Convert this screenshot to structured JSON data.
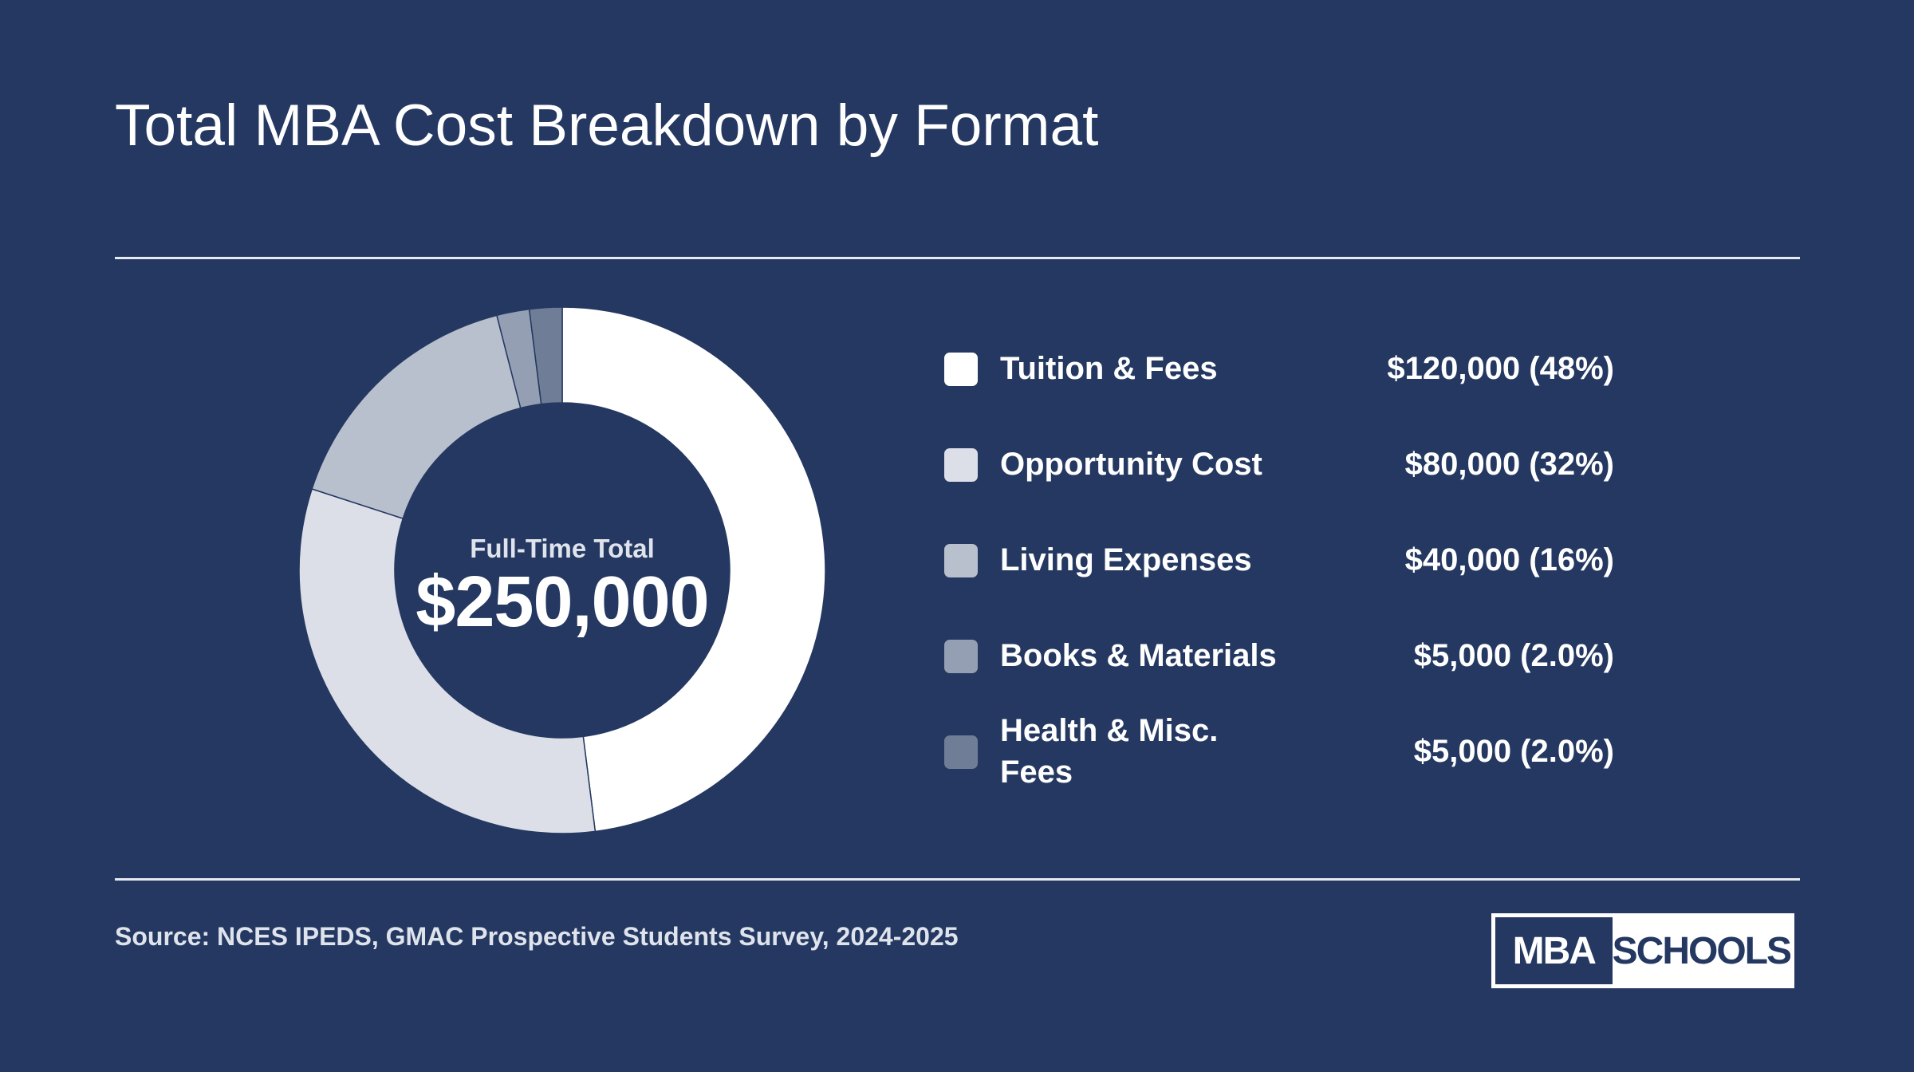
{
  "page": {
    "title": "Total MBA Cost Breakdown by Format",
    "source": "Source: NCES IPEDS, GMAC Prospective Students Survey, 2024-2025",
    "logo": {
      "left_text": "MBA",
      "right_text": "SCHOOLS"
    }
  },
  "colors": {
    "background": "#243861",
    "rule": "#e6e9f0"
  },
  "chart_data": {
    "type": "pie",
    "title": "Total MBA Cost Breakdown by Format",
    "center_label": "Full-Time Total",
    "center_value": "$250,000",
    "total": 250000,
    "legend_placement": "right",
    "slices": [
      {
        "label": "Tuition & Fees",
        "value": 120000,
        "value_text": "$120,000 (48%)",
        "color": "#ffffff"
      },
      {
        "label": "Opportunity Cost",
        "value": 80000,
        "value_text": "$80,000 (32%)",
        "color": "#dcdfe8"
      },
      {
        "label": "Living Expenses",
        "value": 40000,
        "value_text": "$40,000 (16%)",
        "color": "#b8bfcd"
      },
      {
        "label": "Books & Materials",
        "value": 5000,
        "value_text": "$5,000 (2.0%)",
        "color": "#959fb3"
      },
      {
        "label": "Health & Misc. Fees",
        "value": 5000,
        "value_text": "$5,000 (2.0%)",
        "color": "#707d97"
      }
    ]
  }
}
